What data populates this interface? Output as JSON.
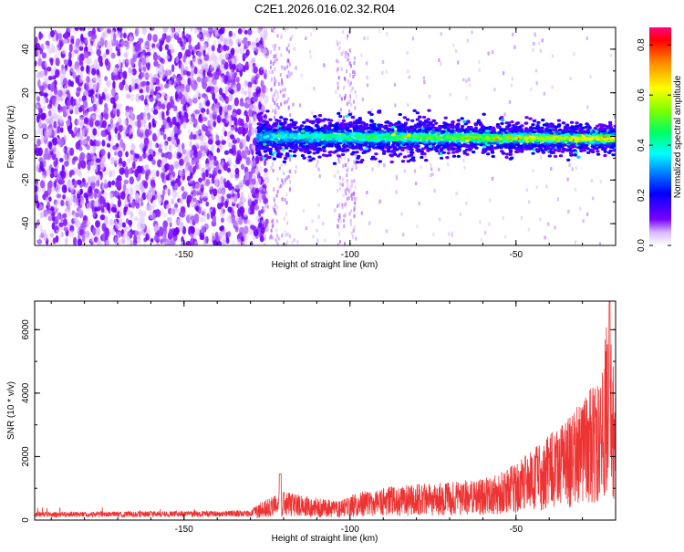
{
  "title": "C2E1.2026.016.02.32.R04",
  "chart_data": [
    {
      "type": "heatmap",
      "xlabel": "Height of straight line (km)",
      "ylabel": "Frequency (Hz)",
      "xlim": [
        -195,
        -20
      ],
      "ylim": [
        -50,
        50
      ],
      "x_ticks": [
        -150,
        -100,
        -50
      ],
      "y_ticks": [
        -40,
        -20,
        0,
        20,
        40
      ],
      "colorbar": {
        "label": "Normalized spectral amplitude",
        "range": [
          0,
          0.87
        ],
        "ticks": [
          0.0,
          0.2,
          0.4,
          0.6,
          0.8
        ]
      },
      "signal_onset_km": -128,
      "signal_center_hz": 0
    },
    {
      "type": "line",
      "xlabel": "Height of straight line (km)",
      "ylabel": "SNR (10 * v/v)",
      "xlim": [
        -195,
        -20
      ],
      "ylim": [
        0,
        6900
      ],
      "x_ticks": [
        -150,
        -100,
        -50
      ],
      "y_ticks": [
        0,
        2000,
        4000,
        6000
      ],
      "color": "#ee3333",
      "envelope": [
        {
          "x": -195,
          "y": 250
        },
        {
          "x": -130,
          "y": 300
        },
        {
          "x": -127,
          "y": 550
        },
        {
          "x": -120,
          "y": 900
        },
        {
          "x": -110,
          "y": 700
        },
        {
          "x": -103,
          "y": 600
        },
        {
          "x": -98,
          "y": 900
        },
        {
          "x": -85,
          "y": 1100
        },
        {
          "x": -70,
          "y": 1200
        },
        {
          "x": -60,
          "y": 1300
        },
        {
          "x": -50,
          "y": 1800
        },
        {
          "x": -42,
          "y": 2500
        },
        {
          "x": -35,
          "y": 3200
        },
        {
          "x": -30,
          "y": 3800
        },
        {
          "x": -25,
          "y": 4600
        },
        {
          "x": -22,
          "y": 6900
        },
        {
          "x": -20,
          "y": 4000
        }
      ]
    }
  ]
}
